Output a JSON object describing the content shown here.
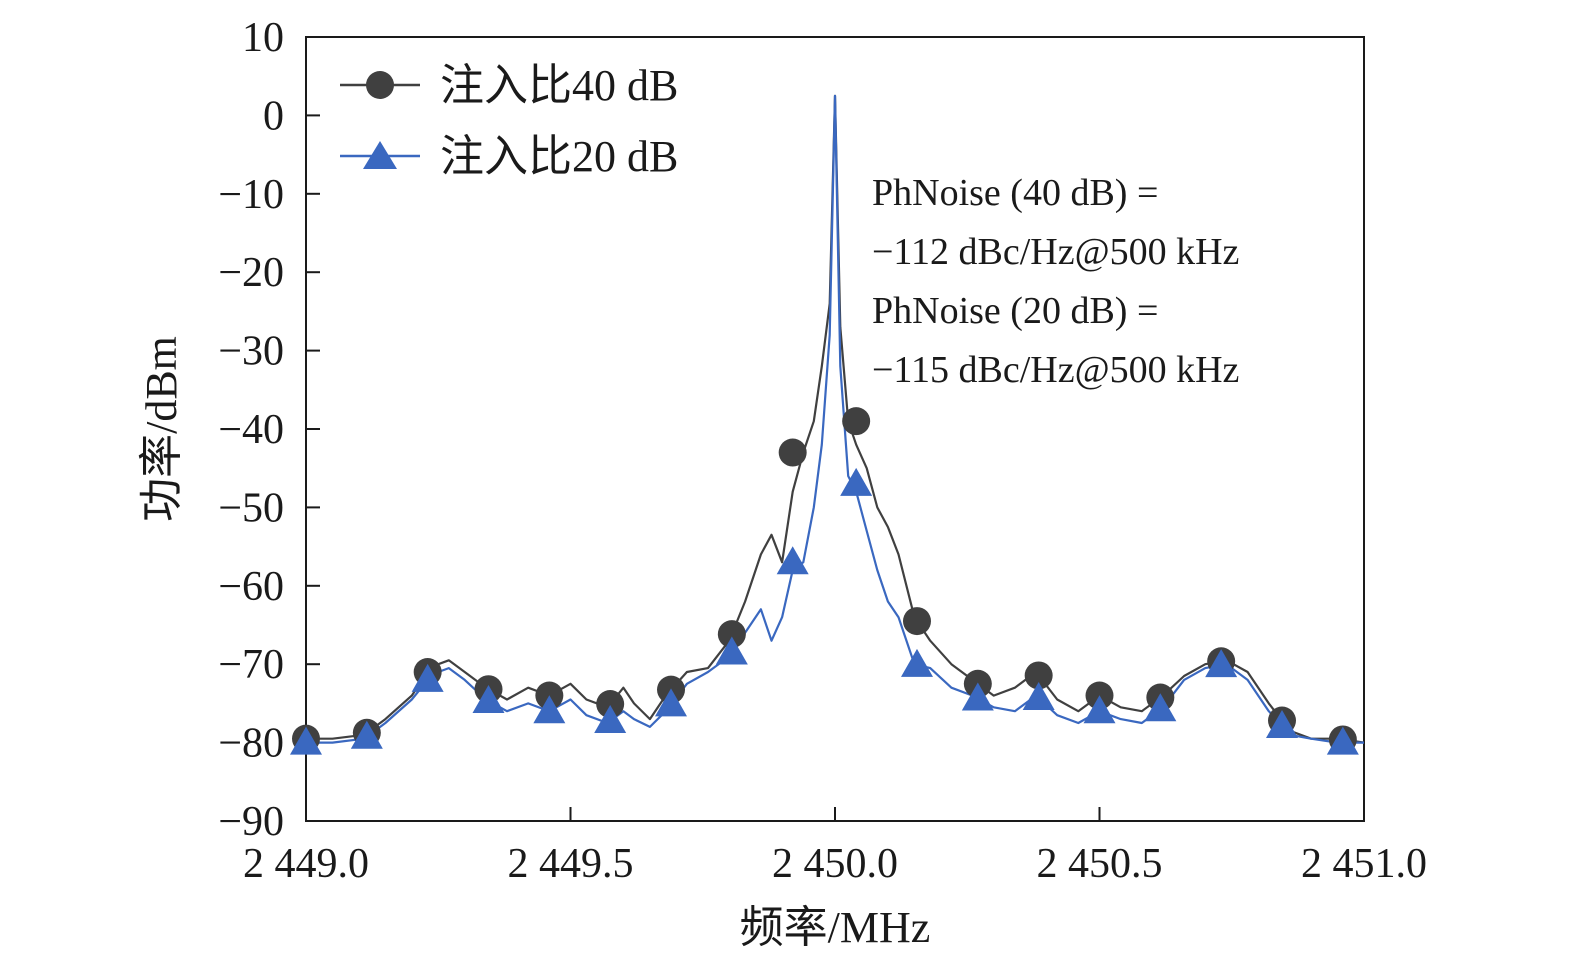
{
  "chart_data": {
    "type": "line",
    "title": "",
    "xlabel": "频率/MHz",
    "ylabel": "功率/dBm",
    "xlim": [
      2449.0,
      2451.0
    ],
    "ylim": [
      -90,
      10
    ],
    "x_ticks": [
      2449.0,
      2449.5,
      2450.0,
      2450.5,
      2451.0
    ],
    "x_tick_labels": [
      "2 449.0",
      "2 449.5",
      "2 450.0",
      "2 450.5",
      "2 451.0"
    ],
    "y_ticks": [
      10,
      0,
      -10,
      -20,
      -30,
      -40,
      -50,
      -60,
      -70,
      -80,
      -90
    ],
    "y_tick_labels": [
      "10",
      "0",
      "−10",
      "−20",
      "−30",
      "−40",
      "−50",
      "−60",
      "−70",
      "−80",
      "−90"
    ],
    "legend_position": "top-left",
    "series": [
      {
        "name": "注入比40 dB",
        "color": "#404040",
        "marker": "circle",
        "x": [
          2449.0,
          2449.05,
          2449.11,
          2449.15,
          2449.2,
          2449.23,
          2449.25,
          2449.27,
          2449.3,
          2449.34,
          2449.38,
          2449.42,
          2449.46,
          2449.5,
          2449.53,
          2449.57,
          2449.6,
          2449.62,
          2449.65,
          2449.68,
          2449.72,
          2449.76,
          2449.8,
          2449.83,
          2449.86,
          2449.88,
          2449.9,
          2449.92,
          2449.94,
          2449.96,
          2449.975,
          2449.99,
          2450.0,
          2450.01,
          2450.025,
          2450.04,
          2450.06,
          2450.08,
          2450.1,
          2450.12,
          2450.15,
          2450.18,
          2450.22,
          2450.26,
          2450.3,
          2450.34,
          2450.38,
          2450.42,
          2450.46,
          2450.5,
          2450.54,
          2450.58,
          2450.62,
          2450.66,
          2450.7,
          2450.74,
          2450.78,
          2450.82,
          2450.86,
          2450.9,
          2450.95,
          2451.0
        ],
        "y": [
          -79.5,
          -79.5,
          -79,
          -77,
          -74,
          -71,
          -70,
          -69.5,
          -71,
          -73,
          -74.5,
          -73,
          -74,
          -72.5,
          -74.5,
          -75.5,
          -73,
          -75,
          -77,
          -74,
          -71,
          -70.5,
          -67,
          -62,
          -56,
          -53.5,
          -57,
          -48,
          -43,
          -39,
          -32,
          -24,
          2.5,
          -27,
          -39,
          -42,
          -45,
          -50,
          -52.5,
          -56,
          -64,
          -67,
          -70,
          -72,
          -74,
          -73,
          -71,
          -74.5,
          -76,
          -74,
          -75.5,
          -76,
          -74,
          -71.5,
          -70,
          -69.5,
          -71,
          -75,
          -78.5,
          -79.5,
          -79.5,
          -80
        ]
      },
      {
        "name": "注入比20 dB",
        "color": "#3a68c0",
        "marker": "triangle",
        "x": [
          2449.0,
          2449.05,
          2449.11,
          2449.15,
          2449.2,
          2449.23,
          2449.25,
          2449.27,
          2449.3,
          2449.34,
          2449.38,
          2449.42,
          2449.46,
          2449.5,
          2449.53,
          2449.57,
          2449.6,
          2449.62,
          2449.65,
          2449.68,
          2449.72,
          2449.76,
          2449.8,
          2449.83,
          2449.86,
          2449.88,
          2449.9,
          2449.92,
          2449.94,
          2449.96,
          2449.975,
          2449.99,
          2450.0,
          2450.01,
          2450.025,
          2450.04,
          2450.06,
          2450.08,
          2450.1,
          2450.12,
          2450.15,
          2450.18,
          2450.22,
          2450.26,
          2450.3,
          2450.34,
          2450.38,
          2450.42,
          2450.46,
          2450.5,
          2450.54,
          2450.58,
          2450.62,
          2450.66,
          2450.7,
          2450.74,
          2450.78,
          2450.82,
          2450.86,
          2450.9,
          2450.95,
          2451.0
        ],
        "y": [
          -80,
          -80,
          -79.5,
          -77.5,
          -74.5,
          -72,
          -71,
          -70.5,
          -72,
          -74.5,
          -76,
          -75,
          -76,
          -74.5,
          -76.5,
          -77.5,
          -76,
          -77,
          -78,
          -76,
          -72.5,
          -71,
          -69,
          -66,
          -63,
          -67,
          -64,
          -58,
          -57,
          -50,
          -42,
          -28,
          2.5,
          -32,
          -46,
          -48,
          -53,
          -58,
          -62,
          -64,
          -70,
          -70.5,
          -73,
          -74,
          -75.5,
          -76,
          -74,
          -76.5,
          -77.5,
          -76,
          -77,
          -77.5,
          -75.5,
          -72,
          -70.5,
          -70,
          -72,
          -76,
          -79,
          -79.5,
          -80,
          -80
        ]
      }
    ],
    "annotations": [
      "PhNoise (40 dB) =",
      "−112 dBc/Hz@500 kHz",
      "PhNoise (20 dB) =",
      "−115 dBc/Hz@500 kHz"
    ]
  }
}
